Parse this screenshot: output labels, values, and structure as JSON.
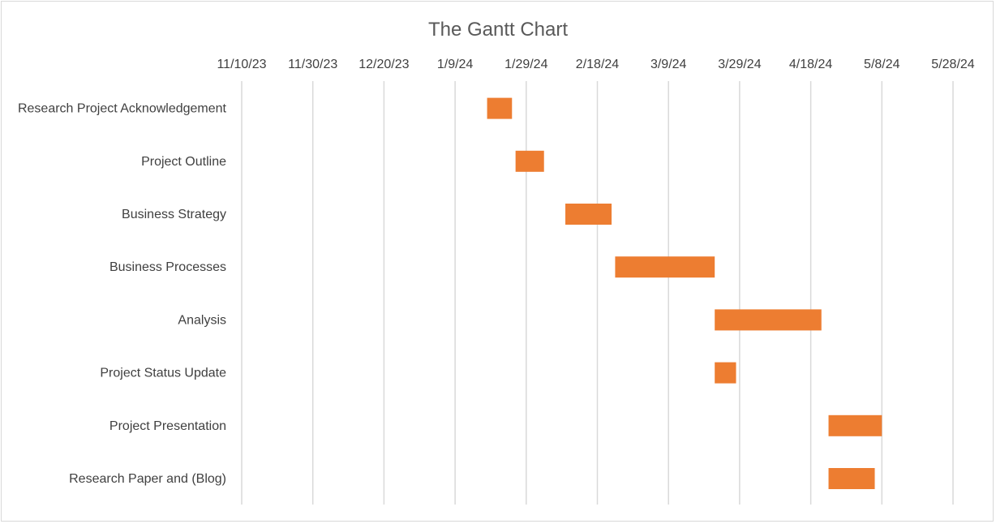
{
  "chart_data": {
    "type": "bar",
    "orientation": "horizontal",
    "stacked_gantt": true,
    "title": "The Gantt Chart",
    "x_axis": {
      "position": "top",
      "tick_labels": [
        "11/10/23",
        "11/30/23",
        "12/20/23",
        "1/9/24",
        "1/29/24",
        "2/18/24",
        "3/9/24",
        "3/29/24",
        "4/18/24",
        "5/8/24",
        "5/28/24"
      ],
      "range": [
        "2023-11-10",
        "2024-05-28"
      ],
      "major_unit_days": 20,
      "grid": true
    },
    "categories": [
      "Research Project Acknowledgement",
      "Project Outline",
      "Business Strategy",
      "Business Processes",
      "Analysis",
      "Project Status Update",
      "Project Presentation",
      "Research Paper and (Blog)"
    ],
    "tasks": [
      {
        "start": "2024-01-18",
        "duration_days": 7
      },
      {
        "start": "2024-01-26",
        "duration_days": 8
      },
      {
        "start": "2024-02-09",
        "duration_days": 13
      },
      {
        "start": "2024-02-23",
        "duration_days": 28
      },
      {
        "start": "2024-03-22",
        "duration_days": 30
      },
      {
        "start": "2024-03-22",
        "duration_days": 6
      },
      {
        "start": "2024-04-23",
        "duration_days": 15
      },
      {
        "start": "2024-04-23",
        "duration_days": 13
      }
    ],
    "bar_color": "#ED7D31",
    "grid_color": "#D9D9D9"
  }
}
